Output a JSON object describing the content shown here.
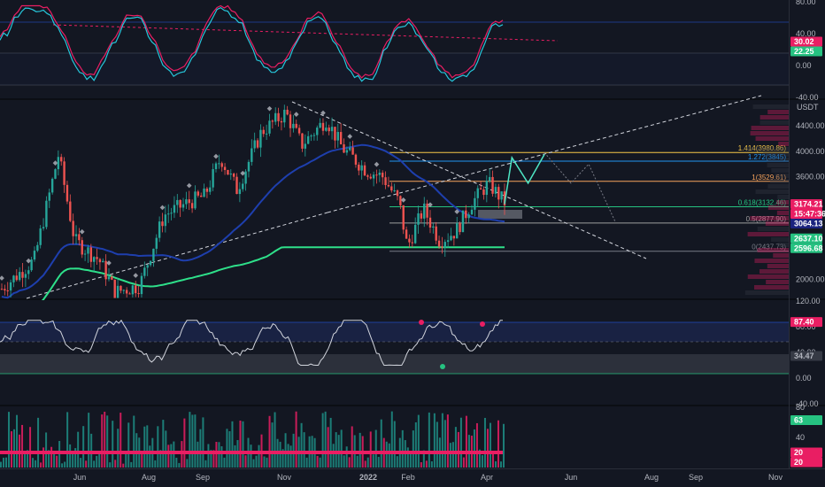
{
  "chart_data": [
    {
      "type": "line",
      "panel": "stoch-rsi-upper",
      "ylim": [
        -40,
        80
      ],
      "y_ticks": [
        "80.00",
        "40.00",
        "0.00",
        "-40.00"
      ],
      "y_tick_values": [
        80,
        40,
        0,
        -40
      ],
      "values_tags": [
        {
          "label": "30.02",
          "value": 30.02,
          "color": "#e91e63"
        },
        {
          "label": "22.25",
          "value": 22.25,
          "color": "#26c281"
        }
      ]
    },
    {
      "type": "candlestick",
      "panel": "price",
      "currency_label": "USDT",
      "ylim": [
        1700,
        4800
      ],
      "y_ticks": [
        "4000.00",
        "3600.00",
        "2000.00",
        "4400.00"
      ],
      "y_tick_values": [
        4000,
        3600,
        2000,
        4400
      ],
      "price_path": [
        [
          0,
          1850
        ],
        [
          0.04,
          2300
        ],
        [
          0.07,
          3950
        ],
        [
          0.09,
          2600
        ],
        [
          0.12,
          2300
        ],
        [
          0.14,
          1800
        ],
        [
          0.17,
          1900
        ],
        [
          0.2,
          3000
        ],
        [
          0.23,
          3200
        ],
        [
          0.25,
          3300
        ],
        [
          0.27,
          3900
        ],
        [
          0.29,
          3400
        ],
        [
          0.32,
          4300
        ],
        [
          0.35,
          4600
        ],
        [
          0.37,
          4100
        ],
        [
          0.4,
          4500
        ],
        [
          0.42,
          4050
        ],
        [
          0.45,
          3700
        ],
        [
          0.47,
          3600
        ],
        [
          0.49,
          3200
        ],
        [
          0.5,
          2500
        ],
        [
          0.52,
          3100
        ],
        [
          0.54,
          2600
        ],
        [
          0.56,
          2750
        ],
        [
          0.58,
          3200
        ],
        [
          0.6,
          3500
        ],
        [
          0.62,
          3200
        ]
      ],
      "projection_path": [
        [
          0.62,
          3174
        ],
        [
          0.64,
          3900
        ],
        [
          0.66,
          3500
        ],
        [
          0.68,
          3950
        ],
        [
          0.7,
          3000
        ]
      ],
      "fib_levels": [
        {
          "label": "1.414(3980.86)",
          "value": 3980.86,
          "color": "#f7c948"
        },
        {
          "label": "1.272(3845)",
          "value": 3845,
          "color": "#2196f3"
        },
        {
          "label": "1(3529.61)",
          "value": 3529.61,
          "color": "#f7a35c"
        },
        {
          "label": "0.618(3132.46)",
          "value": 3132.46,
          "color": "#26c281"
        },
        {
          "label": "0.5(2877.90)",
          "value": 2877.9,
          "color": "#9e9e9e"
        },
        {
          "label": "0(2437.73)",
          "value": 2437.73,
          "color": "#787b86"
        }
      ],
      "values_tags": [
        {
          "label": "3174.21",
          "value": 3174.21,
          "color": "#ffffff",
          "bg": "#e91e63"
        },
        {
          "label": "15:47:36",
          "value": 3174.21,
          "color": "#ffffff",
          "bg": "#e91e63"
        },
        {
          "label": "3064.13",
          "value": 3064.13,
          "color": "#ffffff",
          "bg": "#1a237e"
        },
        {
          "label": "2637.10",
          "value": 2637.1,
          "color": "#ffffff",
          "bg": "#26c281"
        },
        {
          "label": "2596.68",
          "value": 2596.68,
          "color": "#ffffff",
          "bg": "#26c281"
        }
      ]
    },
    {
      "type": "line",
      "panel": "rsi",
      "ylim": [
        -40,
        120
      ],
      "y_ticks": [
        "120.00",
        "80.00",
        "40.00",
        "0.00",
        "-40.00"
      ],
      "y_tick_values": [
        120,
        80,
        40,
        0,
        -40
      ],
      "values_tags": [
        {
          "label": "87.40",
          "value": 87.4,
          "color": "#ffffff",
          "bg": "#e91e63"
        },
        {
          "label": "34.47",
          "value": 34.47,
          "color": "#b2b5be",
          "bg": "#363a45"
        }
      ]
    },
    {
      "type": "bar",
      "panel": "volume-indicator",
      "ylim": [
        0,
        80
      ],
      "y_ticks": [
        "80",
        "40"
      ],
      "y_tick_values": [
        80,
        40
      ],
      "values_tags": [
        {
          "label": "63",
          "value": 63,
          "color": "#ffffff",
          "bg": "#26c281"
        },
        {
          "label": "20",
          "value": 20,
          "color": "#ffffff",
          "bg": "#e91e63"
        },
        {
          "label": "20",
          "value": 20,
          "color": "#ffffff",
          "bg": "#e91e63"
        }
      ]
    }
  ],
  "x_axis": {
    "labels": [
      "Jun",
      "Aug",
      "Sep",
      "Nov",
      "2022",
      "Feb",
      "Apr",
      "Jun",
      "Aug",
      "Sep",
      "Nov"
    ]
  },
  "colors": {
    "background": "#131722",
    "bull": "#26a69a",
    "bear": "#ef5350",
    "ma_blue": "#1e3fae",
    "ma_green": "#2ee08a",
    "projection": "#4ee6c4",
    "divider": "#2a2e39"
  }
}
